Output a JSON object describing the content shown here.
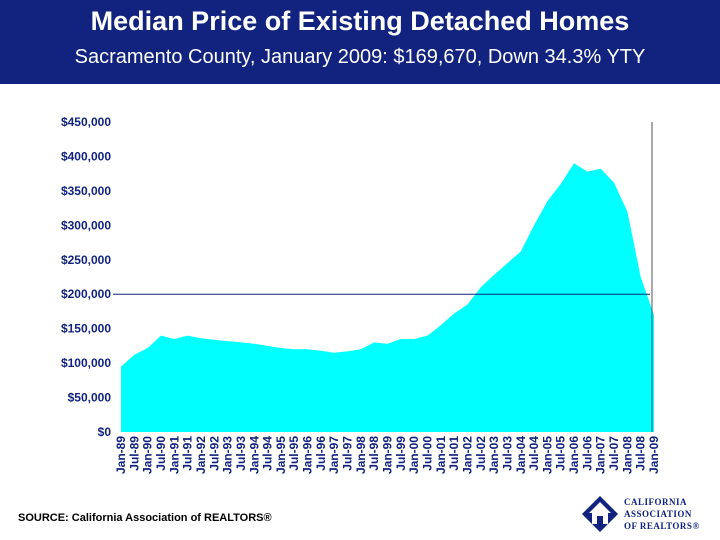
{
  "header": {
    "title": "Median Price of Existing Detached Homes",
    "subtitle": "Sacramento County, January 2009: $169,670, Down 34.3% YTY"
  },
  "source": "SOURCE: California Association of REALTORS®",
  "logo": {
    "lines": [
      "CALIFORNIA",
      "ASSOCIATION",
      "OF REALTORS®"
    ],
    "icon": "house-logo-icon"
  },
  "colors": {
    "header_bg": "#11237e",
    "area_fill": "#00ffff",
    "axis_text": "#11237e",
    "reference_line": "#11237e"
  },
  "chart_data": {
    "type": "area",
    "ylim": [
      0,
      450000
    ],
    "yticks": [
      0,
      50000,
      100000,
      150000,
      200000,
      250000,
      300000,
      350000,
      400000,
      450000
    ],
    "ytick_labels": [
      "$0",
      "$50,000",
      "$100,000",
      "$150,000",
      "$200,000",
      "$250,000",
      "$300,000",
      "$350,000",
      "$400,000",
      "$450,000"
    ],
    "xtick_labels": [
      "Jan-89",
      "Jul-89",
      "Jan-90",
      "Jul-90",
      "Jan-91",
      "Jul-91",
      "Jan-92",
      "Jul-92",
      "Jan-93",
      "Jul-93",
      "Jan-94",
      "Jul-94",
      "Jan-95",
      "Jul-95",
      "Jan-96",
      "Jul-96",
      "Jan-97",
      "Jul-97",
      "Jan-98",
      "Jul-98",
      "Jan-99",
      "Jul-99",
      "Jan-00",
      "Jul-00",
      "Jan-01",
      "Jul-01",
      "Jan-02",
      "Jul-02",
      "Jan-03",
      "Jul-03",
      "Jan-04",
      "Jul-04",
      "Jan-05",
      "Jul-05",
      "Jan-06",
      "Jul-06",
      "Jan-07",
      "Jul-07",
      "Jan-08",
      "Jul-08",
      "Jan-09"
    ],
    "reference_line": 200000,
    "grid": false,
    "legend": "none",
    "x": [
      "Jan-89",
      "Jul-89",
      "Jan-90",
      "Jul-90",
      "Jan-91",
      "Jul-91",
      "Jan-92",
      "Jul-92",
      "Jan-93",
      "Jul-93",
      "Jan-94",
      "Jul-94",
      "Jan-95",
      "Jul-95",
      "Jan-96",
      "Jul-96",
      "Jan-97",
      "Jul-97",
      "Jan-98",
      "Jul-98",
      "Jan-99",
      "Jul-99",
      "Jan-00",
      "Jul-00",
      "Jan-01",
      "Jul-01",
      "Jan-02",
      "Jul-02",
      "Jan-03",
      "Jul-03",
      "Jan-04",
      "Jul-04",
      "Jan-05",
      "Jul-05",
      "Jan-06",
      "Jul-06",
      "Jan-07",
      "Jul-07",
      "Jan-08",
      "Jul-08",
      "Jan-09"
    ],
    "values": [
      95000,
      112000,
      122000,
      140000,
      135000,
      140000,
      136000,
      134000,
      132000,
      130000,
      128000,
      125000,
      122000,
      120000,
      120000,
      118000,
      115000,
      117000,
      120000,
      130000,
      128000,
      135000,
      135000,
      140000,
      155000,
      172000,
      185000,
      210000,
      228000,
      245000,
      262000,
      300000,
      335000,
      360000,
      390000,
      378000,
      382000,
      362000,
      320000,
      225000,
      169670
    ]
  }
}
